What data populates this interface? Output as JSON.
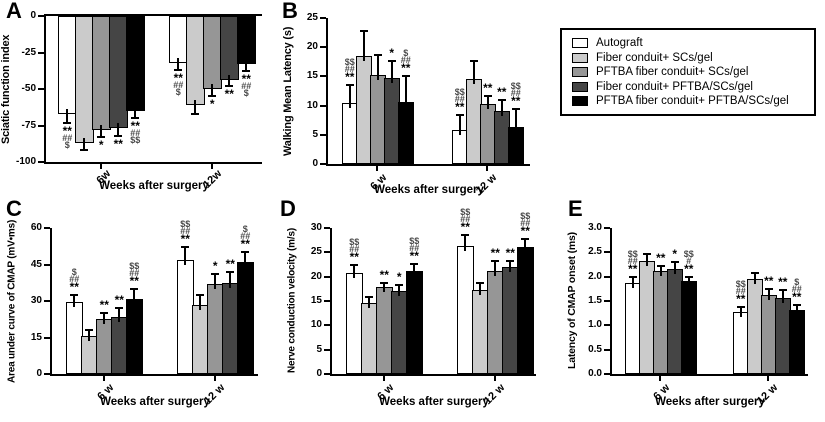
{
  "legend": {
    "items": [
      {
        "label": "Autograft",
        "color": "#ffffff"
      },
      {
        "label": "Fiber conduit+ SCs/gel",
        "color": "#cbcbcb"
      },
      {
        "label": "PFTBA fiber conduit+ SCs/gel",
        "color": "#969696"
      },
      {
        "label": "Fiber conduit+ PFTBA/SCs/gel",
        "color": "#454545"
      },
      {
        "label": "PFTBA fiber conduit+ PFTBA/SCs/gel",
        "color": "#000000"
      }
    ]
  },
  "chart_data": [
    {
      "id": "A",
      "panel_label": "A",
      "type": "bar",
      "bar_direction": "down",
      "ylabel": "Sciatic function index",
      "xlabel": "Weeks after surgery",
      "ylim": [
        -100,
        0
      ],
      "yticks": [
        {
          "v": 0,
          "label": "0"
        },
        {
          "v": -25,
          "label": "-25"
        },
        {
          "v": -50,
          "label": "-50"
        },
        {
          "v": -75,
          "label": "-75"
        },
        {
          "v": -100,
          "label": "-100"
        }
      ],
      "groups": [
        {
          "label": "6w",
          "values": [
            -67,
            -87,
            -78,
            -77,
            -65
          ],
          "errors": [
            6,
            5,
            5,
            5,
            5
          ],
          "annotations": [
            [
              "**",
              "##",
              "$"
            ],
            [],
            [
              "*"
            ],
            [
              "**"
            ],
            [
              "**",
              "##",
              "$$"
            ]
          ]
        },
        {
          "label": "12w",
          "values": [
            -32,
            -61,
            -50,
            -44,
            -33
          ],
          "errors": [
            5,
            6,
            5,
            4,
            5
          ],
          "annotations": [
            [
              "**",
              "##",
              "$"
            ],
            [],
            [
              "*"
            ],
            [
              "**"
            ],
            [
              "**",
              "##",
              "$"
            ]
          ]
        }
      ]
    },
    {
      "id": "B",
      "panel_label": "B",
      "type": "bar",
      "bar_direction": "up",
      "ylabel": "Walking Mean Latency (s)",
      "xlabel": "Weeks after surgery",
      "ylim": [
        0,
        25
      ],
      "yticks": [
        {
          "v": 25,
          "label": "25"
        },
        {
          "v": 20,
          "label": "20"
        },
        {
          "v": 15,
          "label": "15"
        },
        {
          "v": 10,
          "label": "10"
        },
        {
          "v": 5,
          "label": "5"
        },
        {
          "v": 0,
          "label": "0"
        }
      ],
      "groups": [
        {
          "label": "6 w",
          "values": [
            10.5,
            18.5,
            15.2,
            14.7,
            10.7
          ],
          "errors": [
            3.0,
            4.2,
            3.4,
            2.9,
            4.4
          ],
          "annotations": [
            [
              "**",
              "##",
              "$$"
            ],
            [],
            [],
            [
              "*"
            ],
            [
              "**",
              "##",
              "$"
            ]
          ]
        },
        {
          "label": "12 w",
          "values": [
            5.9,
            14.5,
            10.2,
            9.1,
            6.4
          ],
          "errors": [
            2.5,
            3.1,
            1.5,
            1.9,
            3.0
          ],
          "annotations": [
            [
              "**",
              "##",
              "$$"
            ],
            [],
            [
              "**"
            ],
            [
              "**"
            ],
            [
              "**",
              "##",
              "$$"
            ]
          ]
        }
      ]
    },
    {
      "id": "C",
      "panel_label": "C",
      "type": "bar",
      "bar_direction": "up",
      "ylabel": "Area under curve of CMAP (mV•ms)",
      "xlabel": "Weeks after surgery",
      "ylim": [
        0,
        60
      ],
      "yticks": [
        {
          "v": 60,
          "label": "60"
        },
        {
          "v": 45,
          "label": "45"
        },
        {
          "v": 30,
          "label": "30"
        },
        {
          "v": 15,
          "label": "15"
        },
        {
          "v": 0,
          "label": "0"
        }
      ],
      "groups": [
        {
          "label": "6 w",
          "values": [
            29.5,
            15.5,
            22.5,
            23.5,
            31
          ],
          "errors": [
            3,
            2.5,
            2.5,
            3.5,
            4
          ],
          "annotations": [
            [
              "**",
              "##",
              "$"
            ],
            [],
            [
              "**"
            ],
            [
              "**"
            ],
            [
              "**",
              "##",
              "$$"
            ]
          ]
        },
        {
          "label": "12 w",
          "values": [
            47,
            28.5,
            37,
            37.5,
            46
          ],
          "errors": [
            5,
            4,
            4,
            4.5,
            4
          ],
          "annotations": [
            [
              "**",
              "##",
              "$$"
            ],
            [],
            [
              "*"
            ],
            [
              "**"
            ],
            [
              "**",
              "##",
              "$"
            ]
          ]
        }
      ]
    },
    {
      "id": "D",
      "panel_label": "D",
      "type": "bar",
      "bar_direction": "up",
      "ylabel": "Nerve conduction velocity (m/s)",
      "xlabel": "Weeks after surgery",
      "ylim": [
        0,
        30
      ],
      "yticks": [
        {
          "v": 30,
          "label": "30"
        },
        {
          "v": 25,
          "label": "25"
        },
        {
          "v": 20,
          "label": "20"
        },
        {
          "v": 15,
          "label": "15"
        },
        {
          "v": 10,
          "label": "10"
        },
        {
          "v": 5,
          "label": "5"
        },
        {
          "v": 0,
          "label": "0"
        }
      ],
      "groups": [
        {
          "label": "6 w",
          "values": [
            20.8,
            14.5,
            17.8,
            17.1,
            21.2
          ],
          "errors": [
            1.6,
            1.4,
            0.8,
            1.1,
            1.4
          ],
          "annotations": [
            [
              "**",
              "##",
              "$$"
            ],
            [],
            [
              "**"
            ],
            [
              "*"
            ],
            [
              "**",
              "##",
              "$$"
            ]
          ]
        },
        {
          "label": "12 w",
          "values": [
            26.4,
            17.2,
            21.2,
            22.0,
            26.0
          ],
          "errors": [
            2.1,
            1.6,
            2.0,
            1.2,
            1.8
          ],
          "annotations": [
            [
              "**",
              "##",
              "$$"
            ],
            [],
            [
              "**"
            ],
            [
              "**"
            ],
            [
              "**",
              "##",
              "$$"
            ]
          ]
        }
      ]
    },
    {
      "id": "E",
      "panel_label": "E",
      "type": "bar",
      "bar_direction": "up",
      "ylabel": "Latency of CMAP onset (ms)",
      "xlabel": "Weeks after surgery",
      "ylim": [
        0,
        3
      ],
      "yticks": [
        {
          "v": 3.0,
          "label": "3.0"
        },
        {
          "v": 2.5,
          "label": "2.5"
        },
        {
          "v": 2.0,
          "label": "2.0"
        },
        {
          "v": 1.5,
          "label": "1.5"
        },
        {
          "v": 1.0,
          "label": "1.0"
        },
        {
          "v": 0.5,
          "label": "0.5"
        },
        {
          "v": 0.0,
          "label": "0.0"
        }
      ],
      "groups": [
        {
          "label": "6 w",
          "values": [
            1.87,
            2.33,
            2.11,
            2.15,
            1.92
          ],
          "errors": [
            0.13,
            0.14,
            0.11,
            0.15,
            0.08
          ],
          "annotations": [
            [
              "**",
              "##",
              "$$"
            ],
            [],
            [
              "**"
            ],
            [
              "*"
            ],
            [
              "**",
              "#",
              "$$"
            ]
          ]
        },
        {
          "label": "12 w",
          "values": [
            1.27,
            1.95,
            1.63,
            1.57,
            1.32
          ],
          "errors": [
            0.1,
            0.13,
            0.12,
            0.16,
            0.1
          ],
          "annotations": [
            [
              "**",
              "##",
              "$$"
            ],
            [],
            [
              "**"
            ],
            [
              "**"
            ],
            [
              "**",
              "##",
              "$"
            ]
          ]
        }
      ]
    }
  ]
}
